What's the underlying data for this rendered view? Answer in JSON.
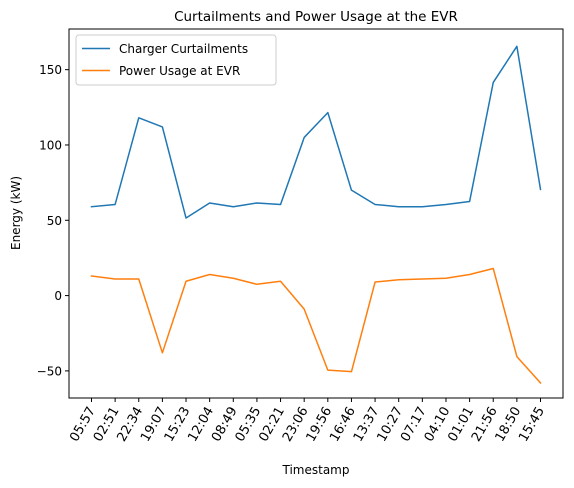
{
  "chart_data": {
    "type": "line",
    "title": "Curtailments and Power Usage at the EVR",
    "xlabel": "Timestamp",
    "ylabel": "Energy (kW)",
    "ylim": [
      -68,
      177
    ],
    "yticks": [
      -50,
      0,
      50,
      100,
      150
    ],
    "grid": false,
    "legend_position": "top-left",
    "categories": [
      "05:57",
      "02:51",
      "22:34",
      "19:07",
      "15:23",
      "12:04",
      "08:49",
      "05:35",
      "02:21",
      "23:06",
      "19:56",
      "16:46",
      "13:37",
      "10:27",
      "07:17",
      "04:10",
      "01:01",
      "21:56",
      "18:50",
      "15:45"
    ],
    "series": [
      {
        "name": "Charger Curtailments",
        "color": "#1f77b4",
        "values": [
          59,
          60.5,
          118,
          112,
          51.5,
          61.5,
          59,
          61.5,
          60.5,
          105,
          121.5,
          70,
          60.5,
          59,
          59,
          60.5,
          62.5,
          141.5,
          165.5,
          70.5
        ]
      },
      {
        "name": "Power Usage at EVR",
        "color": "#ff7f0e",
        "values": [
          13,
          11,
          11,
          -38,
          9.5,
          14,
          11.5,
          7.5,
          9.5,
          -9,
          -49.5,
          -50.5,
          9,
          10.5,
          11,
          11.5,
          14,
          18,
          -40.5,
          -58
        ]
      }
    ]
  }
}
